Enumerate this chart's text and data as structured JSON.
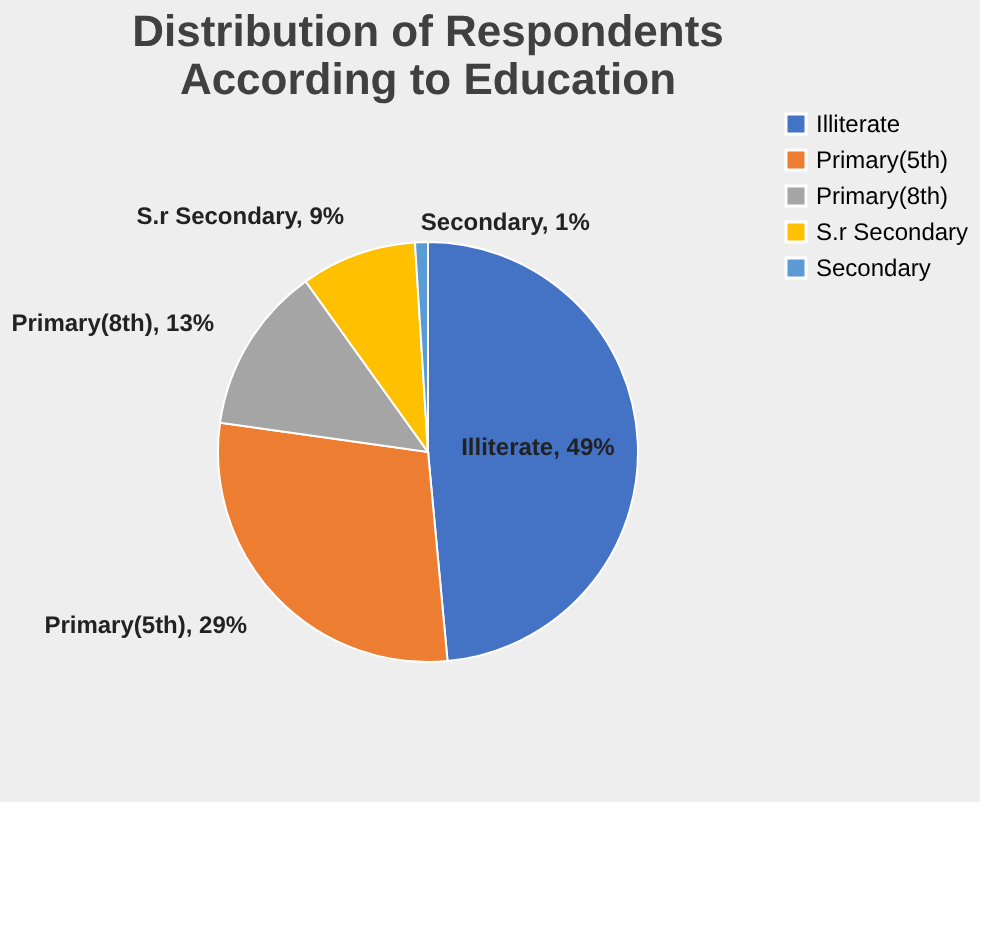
{
  "chart_data": {
    "type": "pie",
    "title": "Distribution of Respondents According to Education",
    "categories": [
      "Illiterate",
      "Primary(5th)",
      "Primary(8th)",
      "S.r Secondary",
      "Secondary"
    ],
    "values": [
      49,
      29,
      13,
      9,
      1
    ],
    "colors": [
      "#4472c4",
      "#ed7d31",
      "#a5a5a5",
      "#ffc000",
      "#5b9bd5"
    ],
    "value_labels": [
      "Illiterate, 49%",
      "Primary(5th), 29%",
      "Primary(8th), 13%",
      "S.r Secondary, 9%",
      "Secondary, 1%"
    ],
    "legend": "right"
  }
}
